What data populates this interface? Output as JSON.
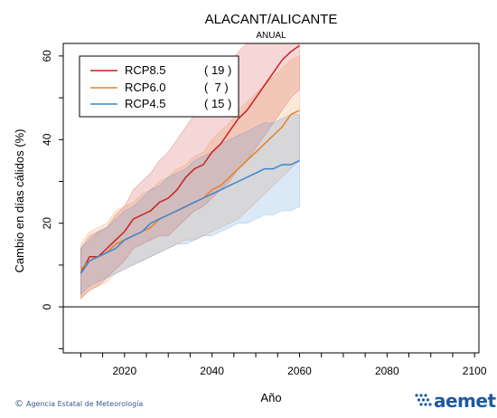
{
  "colors": {
    "rcp85": "#cc1f1f",
    "rcp60": "#e8822a",
    "rcp45": "#3a86d0"
  },
  "footer": {
    "credit": "Agencia Estatal de Meteorología",
    "copyright_symbol": "©",
    "brand": "aemet"
  },
  "chart_data": {
    "type": "line",
    "title": "ALACANT/ALICANTE",
    "subtitle": "ANUAL",
    "xlabel": "Año",
    "ylabel": "Cambio en días cálidos (%)",
    "xlim": [
      2006,
      2101
    ],
    "ylim": [
      -11,
      63
    ],
    "xticks": [
      2020,
      2040,
      2060,
      2080,
      2100
    ],
    "yticks": [
      0,
      20,
      40,
      60
    ],
    "hline": 0,
    "legend_position": "top-left",
    "series": [
      {
        "name": "RCP8.5",
        "count": "( 19 )",
        "color_key": "rcp85",
        "x0": 2010,
        "step": 2,
        "mean": [
          8,
          12,
          12,
          14,
          16,
          18,
          21,
          22,
          23,
          25,
          26,
          28,
          31,
          33,
          34,
          37,
          39,
          42,
          45,
          47,
          50,
          53,
          56,
          59,
          61,
          62.5
        ],
        "upper": [
          14,
          17,
          18,
          19,
          22,
          24,
          28,
          30,
          32,
          35,
          37,
          40,
          43,
          46,
          48,
          52,
          55,
          58,
          61,
          63,
          63,
          63,
          63,
          63,
          63,
          63
        ],
        "lower": [
          2,
          4,
          5,
          7,
          9,
          11,
          14,
          15,
          16,
          17,
          17,
          19,
          21,
          23,
          24,
          26,
          28,
          30,
          33,
          35,
          38,
          41,
          44,
          47,
          50,
          52
        ]
      },
      {
        "name": "RCP6.0",
        "count": "(  7 )",
        "color_key": "rcp60",
        "x0": 2010,
        "step": 2,
        "mean": [
          9,
          11,
          12,
          13,
          15,
          16,
          17,
          18,
          19,
          21,
          22,
          23,
          24,
          25,
          26,
          28,
          29,
          31,
          33,
          35,
          37,
          39,
          41,
          43,
          46,
          47
        ],
        "upper": [
          15,
          18,
          19,
          20,
          23,
          24,
          25,
          27,
          28,
          30,
          31,
          33,
          34,
          36,
          37,
          40,
          42,
          44,
          47,
          49,
          51,
          53,
          55,
          57,
          59,
          60
        ],
        "lower": [
          2,
          4,
          5,
          6,
          8,
          9,
          10,
          11,
          12,
          13,
          14,
          15,
          16,
          16,
          17,
          18,
          19,
          20,
          21,
          23,
          25,
          27,
          29,
          31,
          33,
          35
        ]
      },
      {
        "name": "RCP4.5",
        "count": "( 15 )",
        "color_key": "rcp45",
        "x0": 2010,
        "step": 2,
        "mean": [
          8,
          11,
          12,
          13,
          14,
          16,
          17,
          18,
          20,
          21,
          22,
          23,
          24,
          25,
          26,
          27,
          28,
          29,
          30,
          31,
          32,
          33,
          33,
          34,
          34,
          35
        ],
        "upper": [
          14,
          16,
          18,
          19,
          21,
          23,
          24,
          26,
          28,
          29,
          31,
          32,
          33,
          35,
          36,
          37,
          39,
          40,
          41,
          42,
          43,
          44,
          44,
          45,
          46,
          46
        ],
        "lower": [
          3,
          5,
          6,
          7,
          8,
          9,
          10,
          11,
          12,
          13,
          14,
          15,
          15,
          16,
          17,
          17,
          18,
          19,
          20,
          20,
          21,
          22,
          22,
          23,
          23,
          24
        ]
      }
    ]
  }
}
